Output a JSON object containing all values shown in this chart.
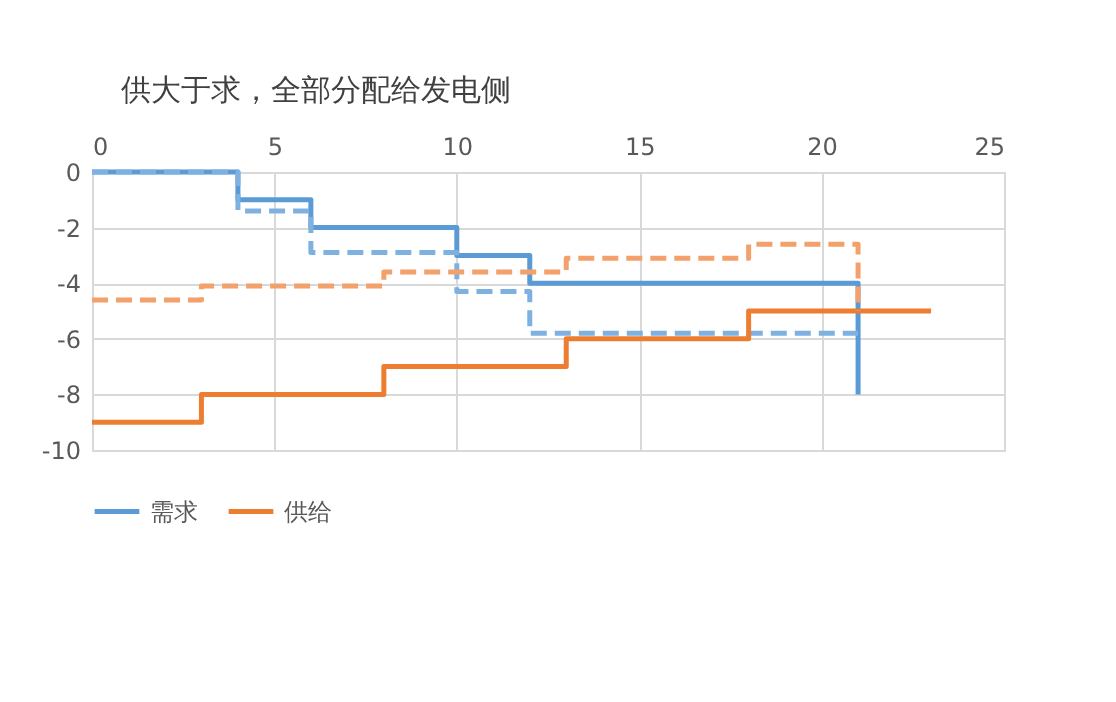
{
  "chart_data": {
    "type": "step",
    "title": "供大于求，全部分配给发电侧",
    "xlim": [
      0,
      25
    ],
    "xticks": [
      0,
      5,
      10,
      15,
      20,
      25
    ],
    "ylim": [
      -10,
      0
    ],
    "yticks": [
      -10,
      -8,
      -6,
      -4,
      -2,
      0
    ],
    "grid": true,
    "legend": "bottom",
    "series": [
      {
        "name": "需求",
        "color": "#5b9bd5",
        "line_style": "solid",
        "x": [
          0,
          4,
          6,
          10,
          12,
          21,
          21
        ],
        "values": [
          0,
          -1,
          -2,
          -3,
          -4,
          -4,
          -8
        ]
      },
      {
        "color": "#7fb1e0",
        "line_style": "dashed",
        "x": [
          0,
          4,
          6,
          10,
          12,
          21
        ],
        "values": [
          0,
          -1.4,
          -2.9,
          -4.3,
          -5.8,
          -5.8
        ]
      },
      {
        "name": "供给",
        "color": "#ed7d31",
        "line_style": "solid",
        "x": [
          0,
          3,
          8,
          13,
          18,
          23
        ],
        "values": [
          -9,
          -8,
          -7,
          -6,
          -5,
          -5
        ]
      },
      {
        "color": "#f4a06a",
        "line_style": "dashed",
        "x": [
          0,
          3,
          8,
          13,
          18,
          21,
          21
        ],
        "values": [
          -4.6,
          -4.1,
          -3.6,
          -3.1,
          -2.6,
          -2.6,
          -5
        ]
      }
    ]
  }
}
